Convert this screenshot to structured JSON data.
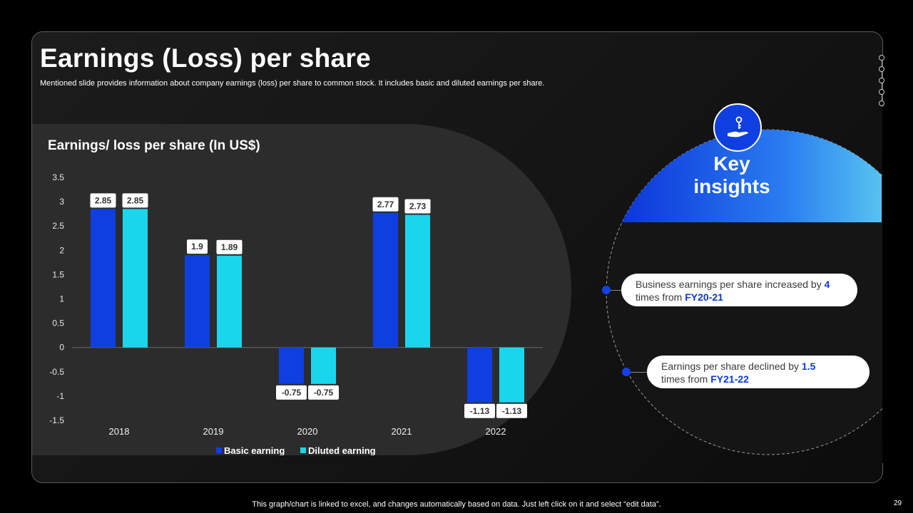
{
  "slide": {
    "title": "Earnings (Loss) per share",
    "subtitle": "Mentioned slide provides information about company earnings (loss) per share to common stock. It includes basic and diluted earnings per share.",
    "footer": "This graph/chart is linked to excel,  and changes automatically based on data. Just left click on it and select “edit data”.",
    "page_number": "29"
  },
  "chart_data": {
    "type": "bar",
    "title": "Earnings/ loss per share (In US$)",
    "categories": [
      "2018",
      "2019",
      "2020",
      "2021",
      "2022"
    ],
    "series": [
      {
        "name": "Basic earning",
        "color": "#0f3fe0",
        "values": [
          2.85,
          1.9,
          -0.75,
          2.77,
          -1.13
        ]
      },
      {
        "name": "Diluted earning",
        "color": "#19d6ec",
        "values": [
          2.85,
          1.89,
          -0.75,
          2.73,
          -1.13
        ]
      }
    ],
    "ylim": [
      -1.5,
      3.5
    ],
    "yticks": [
      "3.5",
      "3",
      "2.5",
      "2",
      "1.5",
      "1",
      "0.5",
      "0",
      "-0.5",
      "-1",
      "-1.5"
    ],
    "xlabel": "",
    "ylabel": "",
    "legend": "bottom"
  },
  "insights": {
    "title": "Key insights",
    "items": [
      {
        "text": "Business earnings per share increased by ",
        "value": "4",
        "mid": " times from ",
        "period": "FY20-21"
      },
      {
        "text": "Earnings per share declined by ",
        "value": "1.5",
        "mid": " times from ",
        "period": "FY21-22"
      }
    ]
  },
  "colors": {
    "accent_blue": "#0f3fe0",
    "accent_cyan": "#19d6ec",
    "highlight": "#0c3ad6"
  }
}
